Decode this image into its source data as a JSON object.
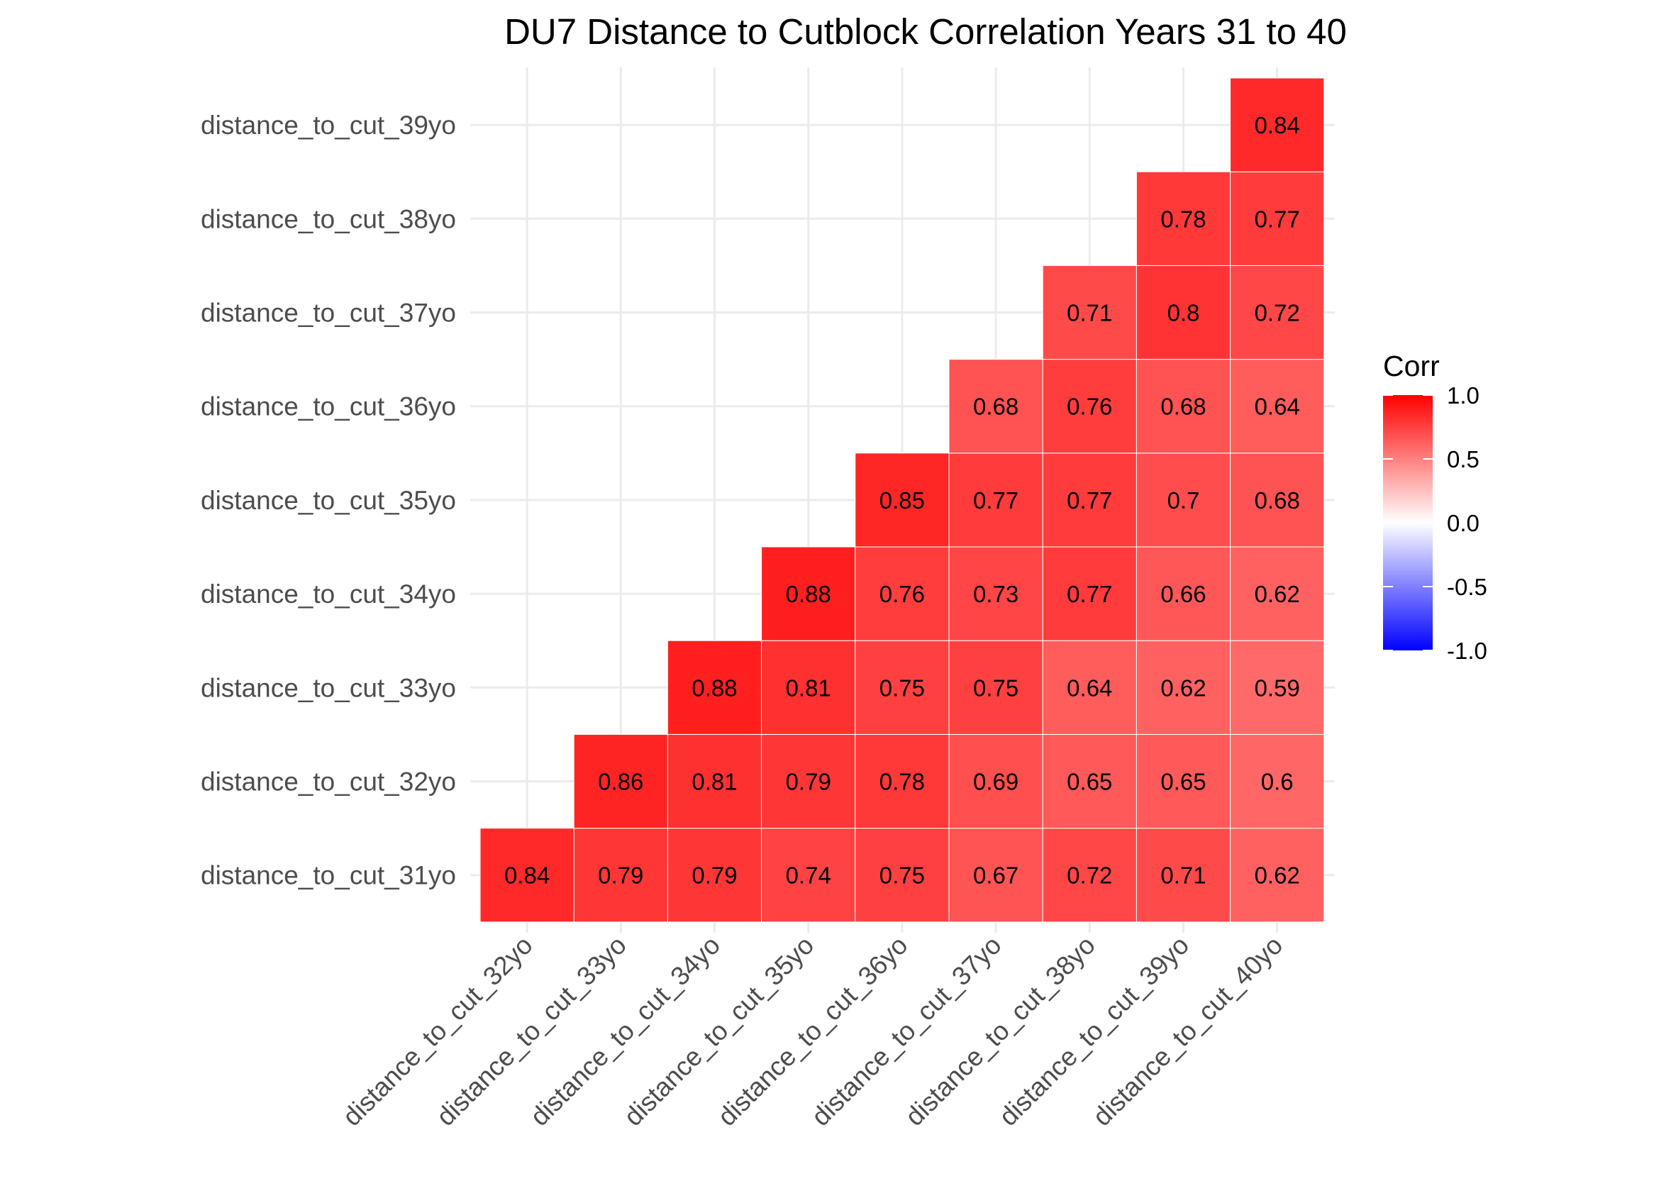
{
  "chart_data": {
    "type": "heatmap",
    "title": "DU7 Distance to Cutblock Correlation Years 31 to 40",
    "x_categories": [
      "distance_to_cut_32yo",
      "distance_to_cut_33yo",
      "distance_to_cut_34yo",
      "distance_to_cut_35yo",
      "distance_to_cut_36yo",
      "distance_to_cut_37yo",
      "distance_to_cut_38yo",
      "distance_to_cut_39yo",
      "distance_to_cut_40yo"
    ],
    "y_categories": [
      "distance_to_cut_31yo",
      "distance_to_cut_32yo",
      "distance_to_cut_33yo",
      "distance_to_cut_34yo",
      "distance_to_cut_35yo",
      "distance_to_cut_36yo",
      "distance_to_cut_37yo",
      "distance_to_cut_38yo",
      "distance_to_cut_39yo"
    ],
    "cells": [
      {
        "x": "distance_to_cut_32yo",
        "y": "distance_to_cut_31yo",
        "value": 0.84,
        "label": "0.84"
      },
      {
        "x": "distance_to_cut_33yo",
        "y": "distance_to_cut_31yo",
        "value": 0.79,
        "label": "0.79"
      },
      {
        "x": "distance_to_cut_34yo",
        "y": "distance_to_cut_31yo",
        "value": 0.79,
        "label": "0.79"
      },
      {
        "x": "distance_to_cut_35yo",
        "y": "distance_to_cut_31yo",
        "value": 0.74,
        "label": "0.74"
      },
      {
        "x": "distance_to_cut_36yo",
        "y": "distance_to_cut_31yo",
        "value": 0.75,
        "label": "0.75"
      },
      {
        "x": "distance_to_cut_37yo",
        "y": "distance_to_cut_31yo",
        "value": 0.67,
        "label": "0.67"
      },
      {
        "x": "distance_to_cut_38yo",
        "y": "distance_to_cut_31yo",
        "value": 0.72,
        "label": "0.72"
      },
      {
        "x": "distance_to_cut_39yo",
        "y": "distance_to_cut_31yo",
        "value": 0.71,
        "label": "0.71"
      },
      {
        "x": "distance_to_cut_40yo",
        "y": "distance_to_cut_31yo",
        "value": 0.62,
        "label": "0.62"
      },
      {
        "x": "distance_to_cut_33yo",
        "y": "distance_to_cut_32yo",
        "value": 0.86,
        "label": "0.86"
      },
      {
        "x": "distance_to_cut_34yo",
        "y": "distance_to_cut_32yo",
        "value": 0.81,
        "label": "0.81"
      },
      {
        "x": "distance_to_cut_35yo",
        "y": "distance_to_cut_32yo",
        "value": 0.79,
        "label": "0.79"
      },
      {
        "x": "distance_to_cut_36yo",
        "y": "distance_to_cut_32yo",
        "value": 0.78,
        "label": "0.78"
      },
      {
        "x": "distance_to_cut_37yo",
        "y": "distance_to_cut_32yo",
        "value": 0.69,
        "label": "0.69"
      },
      {
        "x": "distance_to_cut_38yo",
        "y": "distance_to_cut_32yo",
        "value": 0.65,
        "label": "0.65"
      },
      {
        "x": "distance_to_cut_39yo",
        "y": "distance_to_cut_32yo",
        "value": 0.65,
        "label": "0.65"
      },
      {
        "x": "distance_to_cut_40yo",
        "y": "distance_to_cut_32yo",
        "value": 0.6,
        "label": "0.6"
      },
      {
        "x": "distance_to_cut_34yo",
        "y": "distance_to_cut_33yo",
        "value": 0.88,
        "label": "0.88"
      },
      {
        "x": "distance_to_cut_35yo",
        "y": "distance_to_cut_33yo",
        "value": 0.81,
        "label": "0.81"
      },
      {
        "x": "distance_to_cut_36yo",
        "y": "distance_to_cut_33yo",
        "value": 0.75,
        "label": "0.75"
      },
      {
        "x": "distance_to_cut_37yo",
        "y": "distance_to_cut_33yo",
        "value": 0.75,
        "label": "0.75"
      },
      {
        "x": "distance_to_cut_38yo",
        "y": "distance_to_cut_33yo",
        "value": 0.64,
        "label": "0.64"
      },
      {
        "x": "distance_to_cut_39yo",
        "y": "distance_to_cut_33yo",
        "value": 0.62,
        "label": "0.62"
      },
      {
        "x": "distance_to_cut_40yo",
        "y": "distance_to_cut_33yo",
        "value": 0.59,
        "label": "0.59"
      },
      {
        "x": "distance_to_cut_35yo",
        "y": "distance_to_cut_34yo",
        "value": 0.88,
        "label": "0.88"
      },
      {
        "x": "distance_to_cut_36yo",
        "y": "distance_to_cut_34yo",
        "value": 0.76,
        "label": "0.76"
      },
      {
        "x": "distance_to_cut_37yo",
        "y": "distance_to_cut_34yo",
        "value": 0.73,
        "label": "0.73"
      },
      {
        "x": "distance_to_cut_38yo",
        "y": "distance_to_cut_34yo",
        "value": 0.77,
        "label": "0.77"
      },
      {
        "x": "distance_to_cut_39yo",
        "y": "distance_to_cut_34yo",
        "value": 0.66,
        "label": "0.66"
      },
      {
        "x": "distance_to_cut_40yo",
        "y": "distance_to_cut_34yo",
        "value": 0.62,
        "label": "0.62"
      },
      {
        "x": "distance_to_cut_36yo",
        "y": "distance_to_cut_35yo",
        "value": 0.85,
        "label": "0.85"
      },
      {
        "x": "distance_to_cut_37yo",
        "y": "distance_to_cut_35yo",
        "value": 0.77,
        "label": "0.77"
      },
      {
        "x": "distance_to_cut_38yo",
        "y": "distance_to_cut_35yo",
        "value": 0.77,
        "label": "0.77"
      },
      {
        "x": "distance_to_cut_39yo",
        "y": "distance_to_cut_35yo",
        "value": 0.7,
        "label": "0.7"
      },
      {
        "x": "distance_to_cut_40yo",
        "y": "distance_to_cut_35yo",
        "value": 0.68,
        "label": "0.68"
      },
      {
        "x": "distance_to_cut_37yo",
        "y": "distance_to_cut_36yo",
        "value": 0.68,
        "label": "0.68"
      },
      {
        "x": "distance_to_cut_38yo",
        "y": "distance_to_cut_36yo",
        "value": 0.76,
        "label": "0.76"
      },
      {
        "x": "distance_to_cut_39yo",
        "y": "distance_to_cut_36yo",
        "value": 0.68,
        "label": "0.68"
      },
      {
        "x": "distance_to_cut_40yo",
        "y": "distance_to_cut_36yo",
        "value": 0.64,
        "label": "0.64"
      },
      {
        "x": "distance_to_cut_38yo",
        "y": "distance_to_cut_37yo",
        "value": 0.71,
        "label": "0.71"
      },
      {
        "x": "distance_to_cut_39yo",
        "y": "distance_to_cut_37yo",
        "value": 0.8,
        "label": "0.8"
      },
      {
        "x": "distance_to_cut_40yo",
        "y": "distance_to_cut_37yo",
        "value": 0.72,
        "label": "0.72"
      },
      {
        "x": "distance_to_cut_39yo",
        "y": "distance_to_cut_38yo",
        "value": 0.78,
        "label": "0.78"
      },
      {
        "x": "distance_to_cut_40yo",
        "y": "distance_to_cut_38yo",
        "value": 0.77,
        "label": "0.77"
      },
      {
        "x": "distance_to_cut_40yo",
        "y": "distance_to_cut_39yo",
        "value": 0.84,
        "label": "0.84"
      }
    ],
    "legend": {
      "title": "Corr",
      "position": "right",
      "range": [
        -1,
        1
      ],
      "ticks": [
        {
          "value": 1,
          "label": "1.0"
        },
        {
          "value": 0.5,
          "label": "0.5"
        },
        {
          "value": 0,
          "label": "0.0"
        },
        {
          "value": -0.5,
          "label": "-0.5"
        },
        {
          "value": -1,
          "label": "-1.0"
        }
      ],
      "colors": {
        "low": "#0000ff",
        "mid": "#ffffff",
        "high": "#ff0000"
      }
    },
    "grid": true,
    "label_color": "#4d4d4d",
    "grid_color": "#ebebeb"
  }
}
